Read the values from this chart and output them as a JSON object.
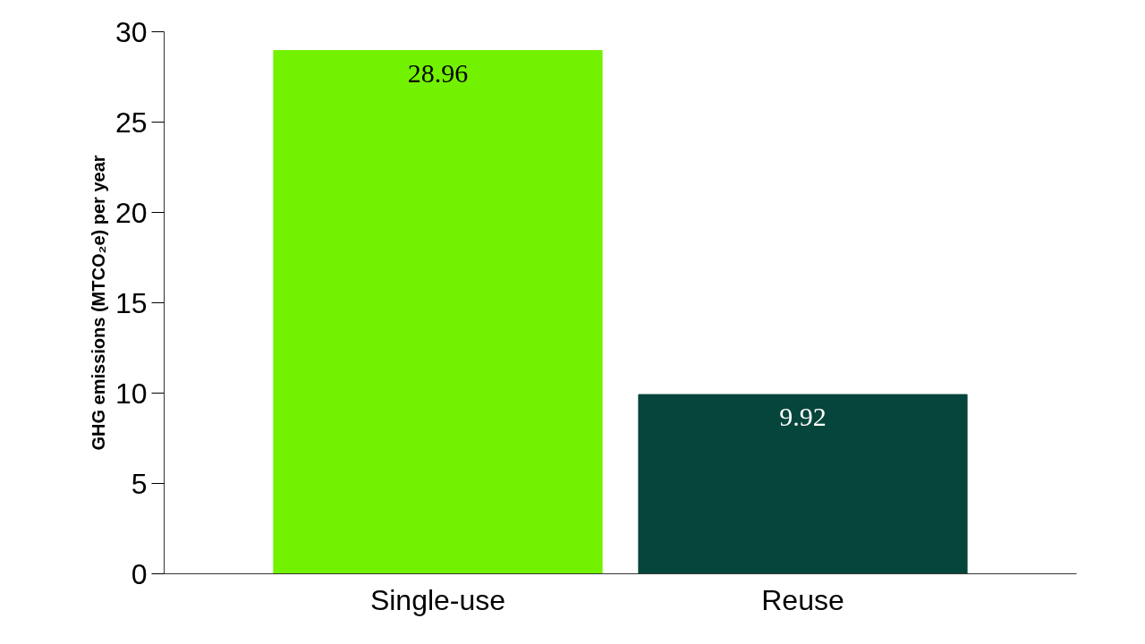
{
  "chart_data": {
    "type": "bar",
    "categories": [
      "Single-use",
      "Reuse"
    ],
    "values": [
      28.96,
      9.92
    ],
    "colors": [
      "#72f200",
      "#06453b"
    ],
    "ylabel": "GHG emissions (MTCO₂e) per year",
    "ylim": [
      0,
      30
    ],
    "yticks": [
      0,
      5,
      10,
      15,
      20,
      25,
      30
    ],
    "data_labels": true,
    "grid": false
  }
}
